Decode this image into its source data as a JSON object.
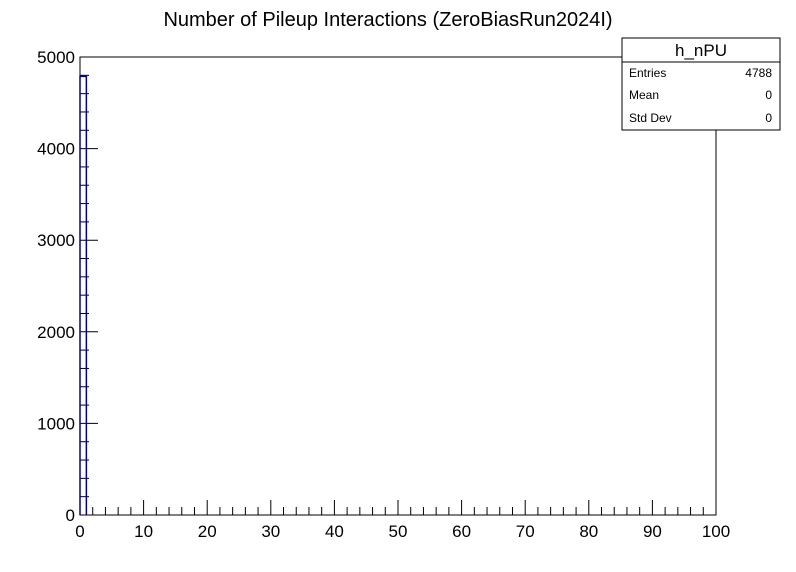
{
  "chart_data": {
    "type": "bar",
    "title": "Number of Pileup Interactions (ZeroBiasRun2024I)",
    "xlabel": "",
    "ylabel": "",
    "xlim": [
      0,
      100
    ],
    "ylim": [
      0,
      5000
    ],
    "x_ticks": [
      "0",
      "10",
      "20",
      "30",
      "40",
      "50",
      "60",
      "70",
      "80",
      "90",
      "100"
    ],
    "y_ticks": [
      "0",
      "1000",
      "2000",
      "3000",
      "4000",
      "5000"
    ],
    "bin_width": 1,
    "series": [
      {
        "x": [
          0
        ],
        "values": [
          4788
        ],
        "color": "#000099"
      }
    ],
    "grid": false
  },
  "stats_box": {
    "title": "h_nPU",
    "rows": [
      {
        "label": "Entries",
        "value": "4788"
      },
      {
        "label": "Mean",
        "value": "0"
      },
      {
        "label": "Std Dev",
        "value": "0"
      }
    ]
  }
}
